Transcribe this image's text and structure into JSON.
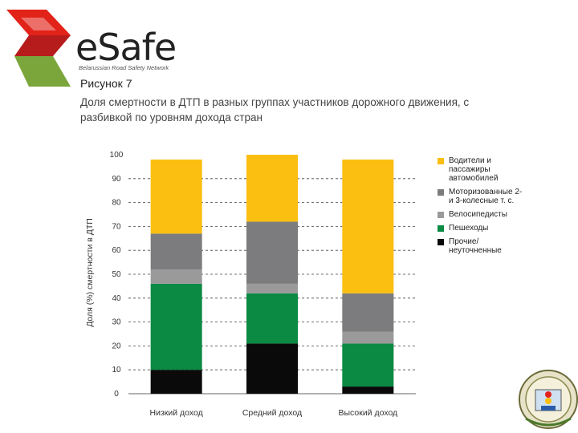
{
  "brand": {
    "name": "eSafe",
    "tagline": "Belarussian Road Safety Network",
    "colors": {
      "red": "#e2231a",
      "green": "#7aa63c"
    }
  },
  "figure": {
    "label": "Рисунок 7",
    "title": "Доля смертности в ДТП в разных группах участников дорожного движения, с разбивкой по уровням дохода стран"
  },
  "chart_data": {
    "type": "bar",
    "stacked": true,
    "categories": [
      "Низкий доход",
      "Средний доход",
      "Высокий доход"
    ],
    "ylabel": "Доля (%) смертности в ДТП",
    "xlabel": "",
    "ylim": [
      0,
      100
    ],
    "yticks": [
      0,
      10,
      20,
      30,
      40,
      50,
      60,
      70,
      80,
      90,
      100
    ],
    "legend_position": "right",
    "series": [
      {
        "name": "Прочие/ неуточненные",
        "color": "#0a0a0a",
        "values": [
          10,
          21,
          3
        ]
      },
      {
        "name": "Пешеходы",
        "color": "#0b8a43",
        "values": [
          36,
          21,
          18
        ]
      },
      {
        "name": "Велосипедисты",
        "color": "#9a9a9a",
        "values": [
          6,
          4,
          5
        ]
      },
      {
        "name": "Моторизованные 2- и 3-колесные т. с.",
        "color": "#7c7c7e",
        "values": [
          15,
          26,
          16
        ]
      },
      {
        "name": "Водители и пассажиры автомобилей",
        "color": "#fbbf11",
        "values": [
          31,
          28,
          56
        ]
      }
    ]
  },
  "legend": {
    "items": [
      {
        "label": "Водители и пассажиры автомобилей",
        "color": "#fbbf11"
      },
      {
        "label": "Моторизованные 2- и 3-колесные т. с.",
        "color": "#7c7c7e"
      },
      {
        "label": "Велосипедисты",
        "color": "#9a9a9a"
      },
      {
        "label": "Пешеходы",
        "color": "#0b8a43"
      },
      {
        "label": "Прочие/ неуточненные",
        "color": "#0a0a0a"
      }
    ]
  }
}
